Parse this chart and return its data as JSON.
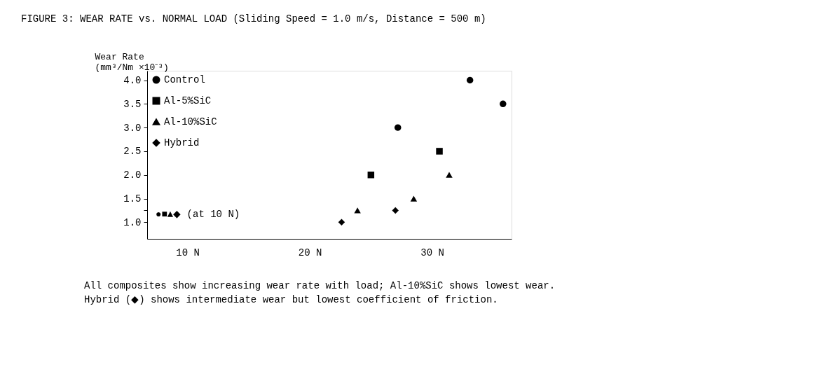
{
  "chart_data": {
    "type": "scatter",
    "title": "FIGURE 3: WEAR RATE vs. NORMAL LOAD (Sliding Speed = 1.0 m/s, Distance = 500 m)",
    "ylabel": "Wear Rate\n(mm³/Nm ×10⁻³)",
    "xlim": [
      6.7,
      36.5
    ],
    "ylim": [
      0.65,
      4.2
    ],
    "xticks": [
      {
        "value": 10,
        "label": "10 N"
      },
      {
        "value": 20,
        "label": "20 N"
      },
      {
        "value": 30,
        "label": "30 N"
      }
    ],
    "yticks": [
      {
        "value": 1.0,
        "label": "1.0"
      },
      {
        "value": 1.25,
        "label": null
      },
      {
        "value": 1.5,
        "label": "1.5"
      },
      {
        "value": 2.0,
        "label": "2.0"
      },
      {
        "value": 2.5,
        "label": "2.5"
      },
      {
        "value": 3.0,
        "label": "3.0"
      },
      {
        "value": 3.5,
        "label": "3.5"
      },
      {
        "value": 4.0,
        "label": "4.0"
      }
    ],
    "series": [
      {
        "name": "Control",
        "color": "#000000",
        "marker": "circle",
        "x": [
          27.2,
          33.1,
          35.8
        ],
        "values": [
          3.0,
          4.0,
          3.5
        ]
      },
      {
        "name": "Al-5%SiC",
        "color": "#000000",
        "marker": "square",
        "x": [
          25.0,
          30.6
        ],
        "values": [
          2.0,
          2.5
        ]
      },
      {
        "name": "Al-10%SiC",
        "color": "#000000",
        "marker": "triangle",
        "x": [
          23.9,
          28.5,
          31.4
        ],
        "values": [
          1.25,
          1.5,
          2.0
        ]
      },
      {
        "name": "Hybrid",
        "color": "#000000",
        "marker": "diamond",
        "x": [
          22.6,
          27.0
        ],
        "values": [
          1.0,
          1.25
        ]
      }
    ],
    "legend": "top left",
    "grid": false,
    "annotations": [
      "●■▲◆ (at 10 N)",
      "All composites show increasing wear rate with load; Al-10%SiC shows lowest wear.",
      "Hybrid (◆) shows intermediate wear but lowest coefficient of friction."
    ]
  }
}
